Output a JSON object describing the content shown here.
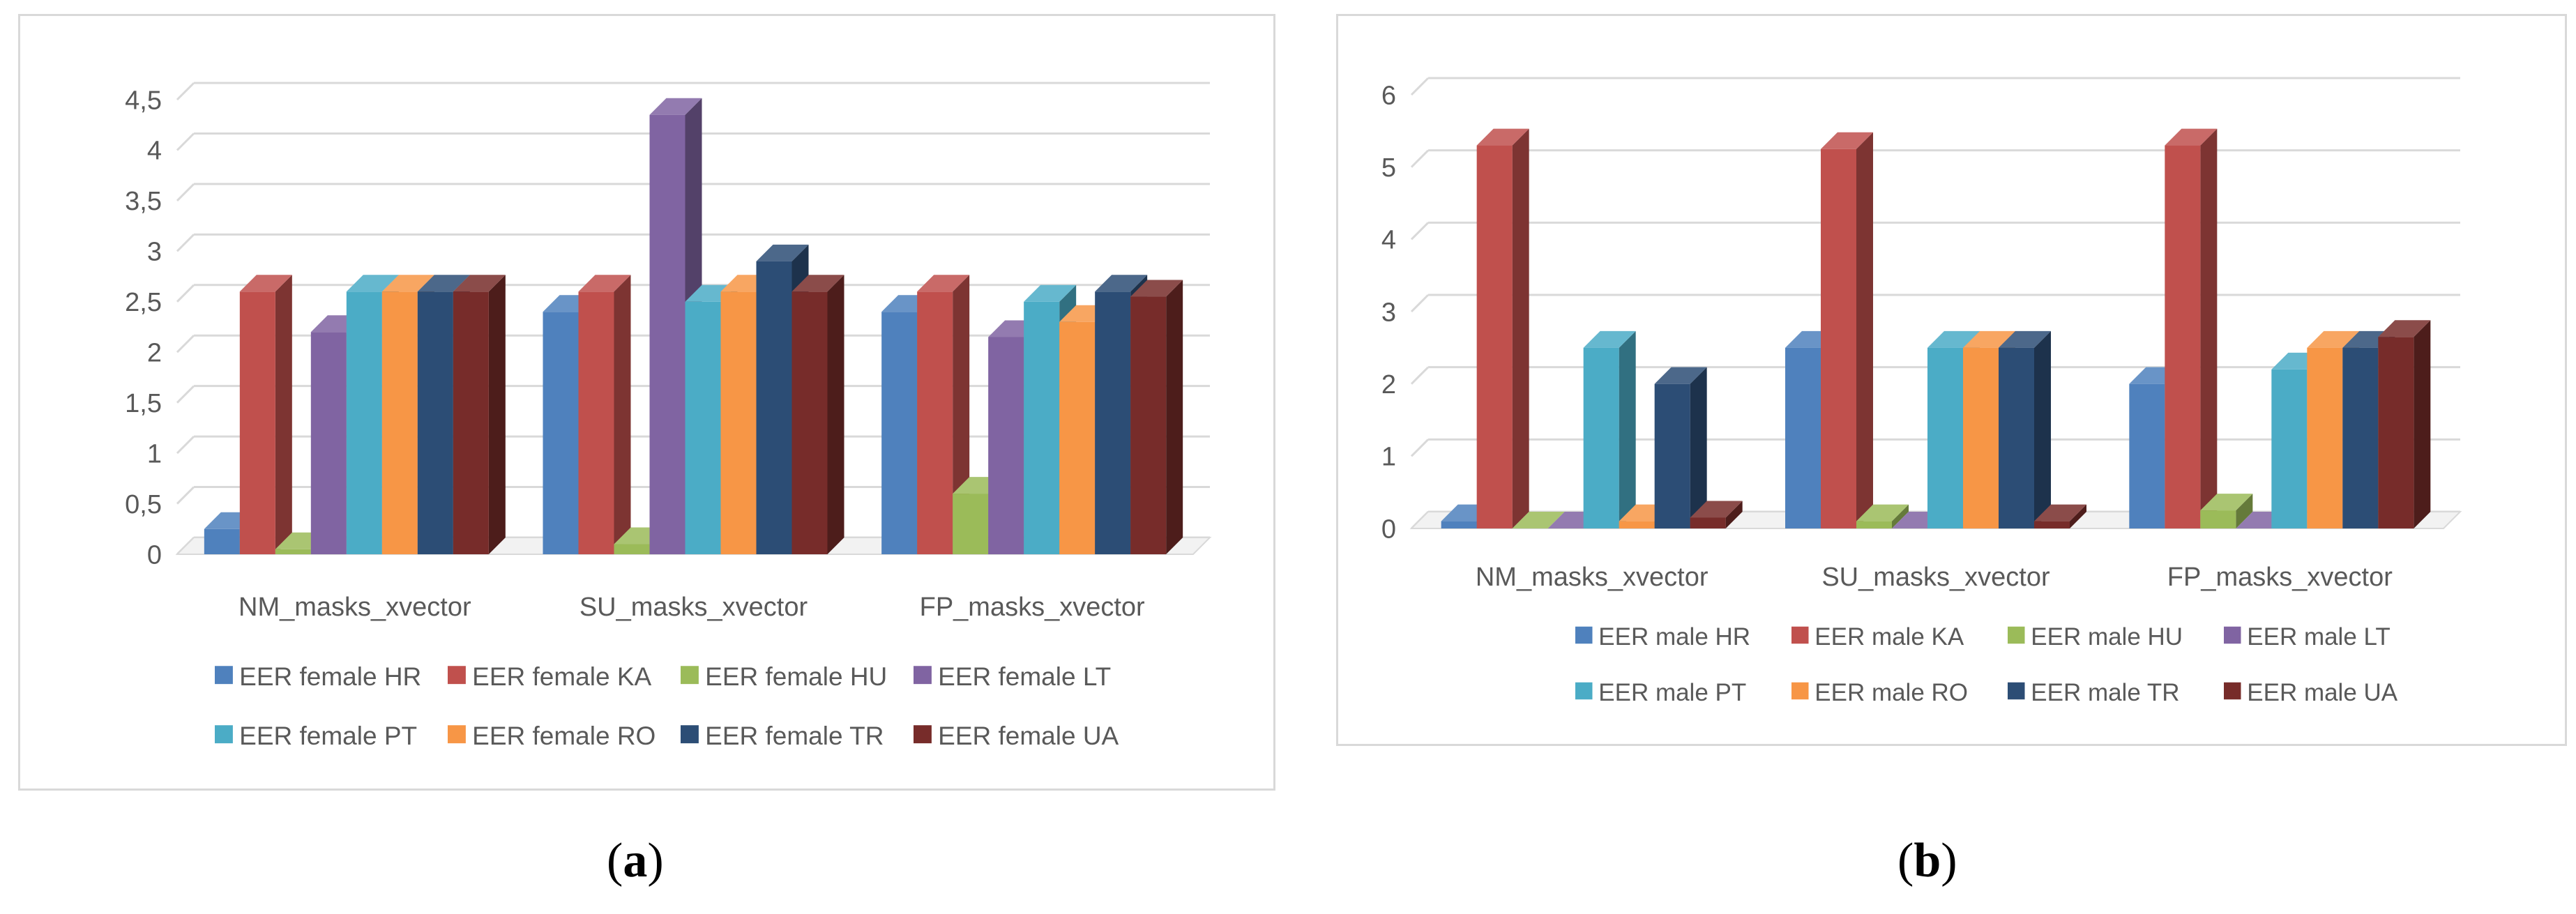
{
  "captions": {
    "a": "a",
    "b": "b"
  },
  "chart_data": [
    {
      "type": "bar",
      "subtype": "3d-clustered-column",
      "categories": [
        "NM_masks_xvector",
        "SU_masks_xvector",
        "FP_masks_xvector"
      ],
      "ylim": [
        0,
        4.5
      ],
      "yticks": [
        "0",
        "0,5",
        "1",
        "1,5",
        "2",
        "2,5",
        "3",
        "3,5",
        "4",
        "4,5"
      ],
      "grid": true,
      "legend_position": "bottom",
      "series": [
        {
          "name": "EER female HR",
          "color": "#4f81bd",
          "values": [
            0.25,
            2.4,
            2.4
          ]
        },
        {
          "name": "EER female KA",
          "color": "#c0504d",
          "values": [
            2.6,
            2.6,
            2.6
          ]
        },
        {
          "name": "EER female HU",
          "color": "#9bbb59",
          "values": [
            0.05,
            0.1,
            0.6
          ]
        },
        {
          "name": "EER female LT",
          "color": "#8064a2",
          "values": [
            2.2,
            4.35,
            2.15
          ]
        },
        {
          "name": "EER female PT",
          "color": "#4bacc6",
          "values": [
            2.6,
            2.5,
            2.5
          ]
        },
        {
          "name": "EER female RO",
          "color": "#f79646",
          "values": [
            2.6,
            2.6,
            2.3
          ]
        },
        {
          "name": "EER female TR",
          "color": "#2c4d75",
          "values": [
            2.6,
            2.9,
            2.6
          ]
        },
        {
          "name": "EER female UA",
          "color": "#772c2a",
          "values": [
            2.6,
            2.6,
            2.55
          ]
        }
      ]
    },
    {
      "type": "bar",
      "subtype": "3d-clustered-column",
      "categories": [
        "NM_masks_xvector",
        "SU_masks_xvector",
        "FP_masks_xvector"
      ],
      "ylim": [
        0,
        6
      ],
      "yticks": [
        "0",
        "1",
        "2",
        "3",
        "4",
        "5",
        "6"
      ],
      "grid": true,
      "legend_position": "bottom",
      "series": [
        {
          "name": "EER male HR",
          "color": "#4f81bd",
          "values": [
            0.1,
            2.5,
            2.0
          ]
        },
        {
          "name": "EER male KA",
          "color": "#c0504d",
          "values": [
            5.3,
            5.25,
            5.3
          ]
        },
        {
          "name": "EER male HU",
          "color": "#9bbb59",
          "values": [
            0.0,
            0.1,
            0.25
          ]
        },
        {
          "name": "EER male LT",
          "color": "#8064a2",
          "values": [
            0.0,
            0.0,
            0.0
          ]
        },
        {
          "name": "EER male PT",
          "color": "#4bacc6",
          "values": [
            2.5,
            2.5,
            2.2
          ]
        },
        {
          "name": "EER male RO",
          "color": "#f79646",
          "values": [
            0.1,
            2.5,
            2.5
          ]
        },
        {
          "name": "EER male TR",
          "color": "#2c4d75",
          "values": [
            2.0,
            2.5,
            2.5
          ]
        },
        {
          "name": "EER male UA",
          "color": "#772c2a",
          "values": [
            0.15,
            0.1,
            2.65
          ]
        }
      ]
    }
  ]
}
